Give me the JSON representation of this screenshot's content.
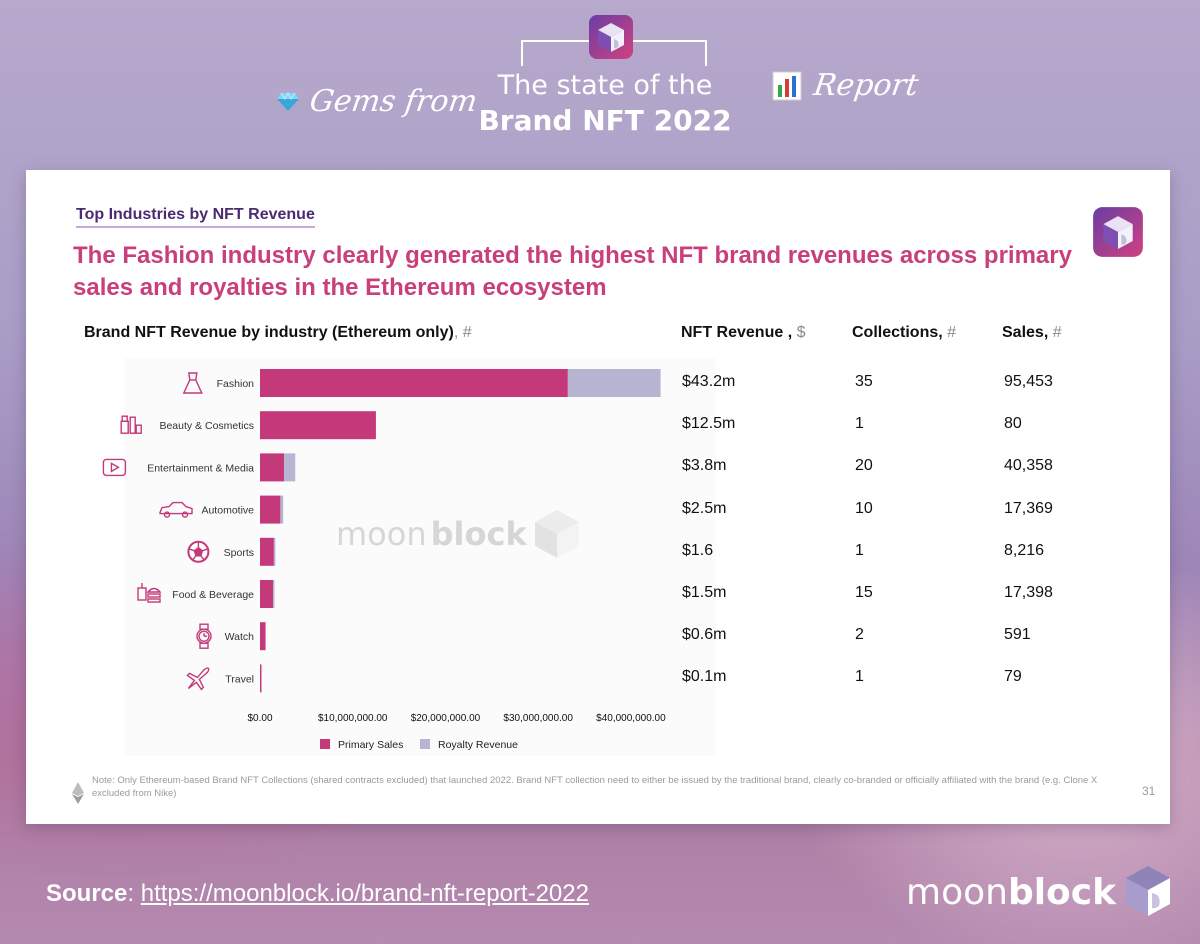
{
  "header": {
    "line1": "The state of the",
    "line2": "Brand NFT 2022",
    "gems_label": "Gems from",
    "report_label": "Report"
  },
  "card": {
    "eyebrow": "Top Industries by NFT Revenue",
    "headline": "The Fashion industry clearly generated the highest NFT brand revenues across primary sales and royalties in the Ethereum ecosystem",
    "columns": {
      "chart_title": "Brand NFT Revenue by industry (Ethereum only)",
      "chart_title_unit": ", #",
      "revenue": "NFT Revenue ,",
      "revenue_unit": " $",
      "collections": "Collections,",
      "collections_unit": " #",
      "sales": "Sales,",
      "sales_unit": " #"
    },
    "watermark_light": "moon",
    "watermark_bold": "block",
    "note": "Note: Only Ethereum-based Brand NFT Collections (shared contracts excluded) that launched 2022. Brand NFT collection need to either be issued by the traditional brand, clearly co-branded or officially affiliated with the brand (e.g. Clone X excluded from Nike)",
    "page_number": "31"
  },
  "table_rows": [
    {
      "revenue": "$43.2m",
      "collections": "35",
      "sales": "95,453"
    },
    {
      "revenue": "$12.5m",
      "collections": "1",
      "sales": "80"
    },
    {
      "revenue": "$3.8m",
      "collections": "20",
      "sales": "40,358"
    },
    {
      "revenue": "$2.5m",
      "collections": "10",
      "sales": "17,369"
    },
    {
      "revenue": "$1.6",
      "collections": "1",
      "sales": "8,216"
    },
    {
      "revenue": "$1.5m",
      "collections": "15",
      "sales": "17,398"
    },
    {
      "revenue": "$0.6m",
      "collections": "2",
      "sales": "591"
    },
    {
      "revenue": "$0.1m",
      "collections": "1",
      "sales": "79"
    }
  ],
  "chart_data": {
    "type": "bar",
    "orientation": "horizontal",
    "stacked": true,
    "categories": [
      "Fashion",
      "Beauty & Cosmetics",
      "Entertainment & Media",
      "Automotive",
      "Sports",
      "Food & Beverage",
      "Watch",
      "Travel"
    ],
    "category_icons": [
      "dress-icon",
      "cosmetics-icon",
      "play-icon",
      "car-icon",
      "soccer-ball-icon",
      "food-icon",
      "watch-icon",
      "airplane-icon"
    ],
    "series": [
      {
        "name": "Primary Sales",
        "color": "#c4397a",
        "values": [
          33200000,
          12500000,
          2600000,
          2200000,
          1500000,
          1400000,
          600000,
          100000
        ]
      },
      {
        "name": "Royalty Revenue",
        "color": "#b7b5d1",
        "values": [
          10000000,
          0,
          1200000,
          300000,
          100000,
          100000,
          0,
          0
        ]
      }
    ],
    "x_ticks": [
      "$0.00",
      "$10,000,000.00",
      "$20,000,000.00",
      "$30,000,000.00",
      "$40,000,000.00"
    ],
    "xlim": [
      0,
      44000000
    ],
    "grid": false,
    "legend_position": "bottom"
  },
  "footer": {
    "source_label": "Source",
    "source_sep": ": ",
    "source_url": "https://moonblock.io/brand-nft-report-2022",
    "logo_light": "moon",
    "logo_bold": "block"
  },
  "colors": {
    "accent_pink": "#c83f7b",
    "eyebrow_purple": "#4b2a73",
    "primary_sales": "#c4397a",
    "royalty": "#b7b5d1"
  }
}
